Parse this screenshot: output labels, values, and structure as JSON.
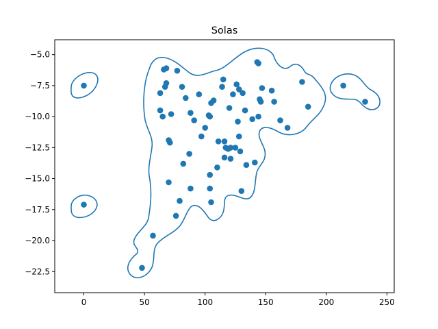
{
  "chart_data": {
    "type": "scatter",
    "title": "Solas",
    "xlabel": "",
    "ylabel": "",
    "xlim": [
      -24,
      256
    ],
    "ylim": [
      -24.2,
      -3.8
    ],
    "xticks": [
      0,
      50,
      100,
      150,
      200,
      250
    ],
    "yticks": [
      -22.5,
      -20.0,
      -17.5,
      -15.0,
      -12.5,
      -10.0,
      -7.5,
      -5.0
    ],
    "grid": false,
    "colors": {
      "points": "#1f77b4",
      "contour": "#1f77b4",
      "axes": "#000000"
    },
    "points": [
      [
        0,
        -7.5
      ],
      [
        0,
        -17.1
      ],
      [
        48,
        -22.2
      ],
      [
        57,
        -19.6
      ],
      [
        63,
        -8.1
      ],
      [
        63,
        -9.5
      ],
      [
        65,
        -10.0
      ],
      [
        66,
        -6.2
      ],
      [
        68,
        -6.1
      ],
      [
        67,
        -7.6
      ],
      [
        68,
        -7.3
      ],
      [
        70,
        -15.3
      ],
      [
        70,
        -11.9
      ],
      [
        71,
        -12.1
      ],
      [
        72,
        -9.8
      ],
      [
        76,
        -18.0
      ],
      [
        77,
        -6.3
      ],
      [
        79,
        -16.8
      ],
      [
        81,
        -7.6
      ],
      [
        82,
        -13.8
      ],
      [
        84,
        -8.5
      ],
      [
        87,
        -13.0
      ],
      [
        88,
        -9.7
      ],
      [
        88,
        -15.8
      ],
      [
        91,
        -10.3
      ],
      [
        95,
        -8.2
      ],
      [
        97,
        -11.6
      ],
      [
        100,
        -10.9
      ],
      [
        103,
        -9.9
      ],
      [
        104,
        -14.7
      ],
      [
        104,
        -15.8
      ],
      [
        104,
        -10.0
      ],
      [
        105,
        -16.9
      ],
      [
        105,
        -8.9
      ],
      [
        107,
        -8.7
      ],
      [
        110,
        -14.1
      ],
      [
        111,
        -12.0
      ],
      [
        114,
        -7.6
      ],
      [
        115,
        -7.0
      ],
      [
        116,
        -12.0
      ],
      [
        116,
        -13.3
      ],
      [
        117,
        -12.5
      ],
      [
        119,
        -12.6
      ],
      [
        120,
        -9.3
      ],
      [
        121,
        -12.5
      ],
      [
        121,
        -13.4
      ],
      [
        123,
        -8.2
      ],
      [
        125,
        -12.5
      ],
      [
        126,
        -7.4
      ],
      [
        127,
        -10.4
      ],
      [
        128,
        -7.8
      ],
      [
        128,
        -11.6
      ],
      [
        129,
        -12.8
      ],
      [
        130,
        -16.0
      ],
      [
        131,
        -8.1
      ],
      [
        133,
        -9.5
      ],
      [
        134,
        -13.9
      ],
      [
        139,
        -10.2
      ],
      [
        141,
        -13.7
      ],
      [
        143,
        -5.6
      ],
      [
        144,
        -5.7
      ],
      [
        144,
        -10.0
      ],
      [
        145,
        -8.6
      ],
      [
        146,
        -8.8
      ],
      [
        147,
        -7.7
      ],
      [
        155,
        -7.9
      ],
      [
        157,
        -8.8
      ],
      [
        162,
        -10.3
      ],
      [
        168,
        -10.9
      ],
      [
        180,
        -7.2
      ],
      [
        185,
        -9.2
      ],
      [
        214,
        -7.5
      ],
      [
        232,
        -8.8
      ]
    ]
  }
}
